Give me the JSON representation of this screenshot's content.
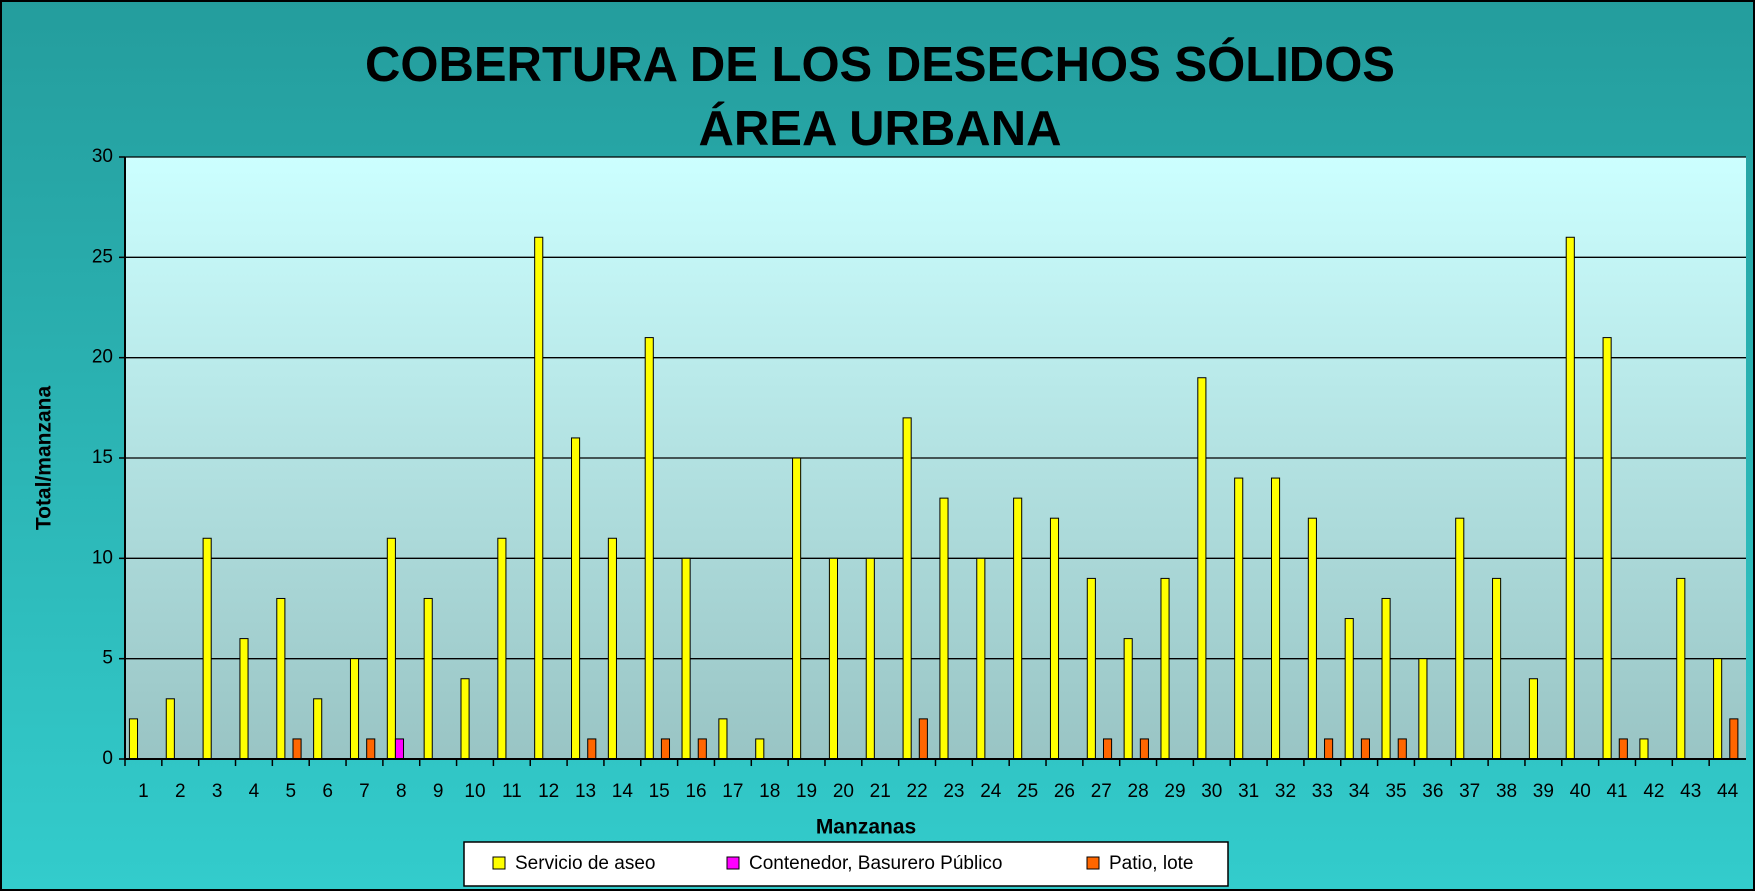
{
  "chart_data": {
    "type": "bar",
    "title": [
      "COBERTURA DE LOS DESECHOS SÓLIDOS",
      "ÁREA URBANA"
    ],
    "xlabel": "Manzanas",
    "ylabel": "Total/manzana",
    "categories": [
      "1",
      "2",
      "3",
      "4",
      "5",
      "6",
      "7",
      "8",
      "9",
      "10",
      "11",
      "12",
      "13",
      "14",
      "15",
      "16",
      "17",
      "18",
      "19",
      "20",
      "21",
      "22",
      "23",
      "24",
      "25",
      "26",
      "27",
      "28",
      "29",
      "30",
      "31",
      "32",
      "33",
      "34",
      "35",
      "36",
      "37",
      "38",
      "39",
      "40",
      "41",
      "42",
      "43",
      "44"
    ],
    "series": [
      {
        "name": "Servicio de aseo",
        "color": "#ffff00",
        "values": [
          2,
          3,
          11,
          6,
          8,
          3,
          5,
          11,
          8,
          4,
          11,
          26,
          16,
          11,
          21,
          10,
          2,
          1,
          15,
          10,
          10,
          17,
          13,
          10,
          13,
          12,
          9,
          6,
          9,
          19,
          14,
          14,
          12,
          7,
          8,
          5,
          12,
          9,
          4,
          26,
          21,
          1,
          9,
          5
        ]
      },
      {
        "name": "Contenedor, Basurero Público",
        "color": "#ff00ff",
        "values": [
          0,
          0,
          0,
          0,
          0,
          0,
          0,
          1,
          0,
          0,
          0,
          0,
          0,
          0,
          0,
          0,
          0,
          0,
          0,
          0,
          0,
          0,
          0,
          0,
          0,
          0,
          0,
          0,
          0,
          0,
          0,
          0,
          0,
          0,
          0,
          0,
          0,
          0,
          0,
          0,
          0,
          0,
          0,
          0
        ]
      },
      {
        "name": "Patio, lote",
        "color": "#ff6600",
        "values": [
          0,
          0,
          0,
          0,
          1,
          0,
          1,
          0,
          0,
          0,
          0,
          0,
          1,
          0,
          1,
          1,
          0,
          0,
          0,
          0,
          0,
          2,
          0,
          0,
          0,
          0,
          1,
          1,
          0,
          0,
          0,
          0,
          1,
          1,
          1,
          0,
          0,
          0,
          0,
          0,
          1,
          0,
          0,
          2
        ]
      }
    ],
    "ylim": [
      0,
      30
    ],
    "yticks": [
      0,
      5,
      10,
      15,
      20,
      25,
      30
    ],
    "grid": true,
    "legend": "bottom"
  }
}
